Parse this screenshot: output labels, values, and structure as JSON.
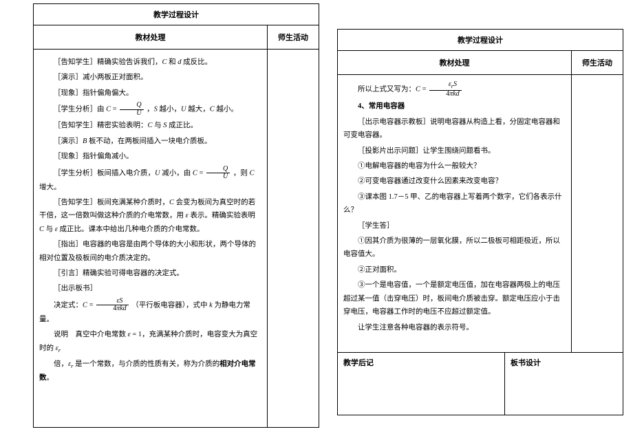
{
  "left": {
    "title": "教学过程设计",
    "col_a": "教材处理",
    "col_b": "师生活动",
    "lines": [
      "［告知学生］精确实验告诉我们，<span class='it'>C</span> 和 <span class='it'>d</span> 成反比。",
      "［演示］减小两板正对面积。",
      "［现象］指针偏角偏大。",
      "［学生分析］由 <span class='it'>C</span> = <span class='frac'><span class='num'><span class=\"it\">Q</span></span><span class='den'><span class=\"it\">U</span></span></span> ，<span class='it'>S</span> 越小，<span class='it'>U</span> 越大，<span class='it'>C</span> 越小。",
      "［告知学生］精密实验表明：<span class='it'>C</span> 与 <span class='it'>S</span> 成正比。",
      "［演示］<span class='it'>B</span> 板不动，在两板间插入一块电介质板。",
      "［现象］指针偏角减小。",
      "［学生分析］板间插入电介质，<span class='it'>U</span> 减小，由 <span class='it'>C</span> = <span class='frac'><span class='num'><span class=\"it\">Q</span></span><span class='den'><span class=\"it\">U</span></span></span> ，则 <span class='it'>C</span> 增大。",
      "［告知学生］板间充满某种介质时，<span class='it'>C</span> 会变为板间为真空时的若干倍，这一倍数叫做这种介质的介电常数，用 <span class='it'>ε</span> 表示。精确实验表明 <span class='it'>C</span> 与 <span class='it'>ε</span> 成正比。课本中给出几种电介质的介电常数。",
      "［指出］电容器的电容是由两个导体的大小和形状，两个导体的相对位置及极板间的电介质决定的。",
      "［引言］精确实验可得电容器的决定式。",
      "［出示板书］",
      "决定式：<span class='it'>C</span> = <span class='frac'><span class='num'><span class=\"it\">εS</span></span><span class='den'>4<span class=\"it\">πkd</span></span></span> （平行板电容器），式中 <span class='it'>k</span> 为静电力常量。",
      "说明　真空中介电常数 <span class='it'>ε</span> = 1，充满某种介质时，电容变大为真空时的 <span class='it'>ε<sub>r</sub></span>",
      "倍，<span class='it'>ε<sub>r</sub></span> 是一个常数，与介质的性质有关，称为介质的<span class='bold'>相对介电常数</span>。"
    ]
  },
  "right": {
    "title": "教学过程设计",
    "col_a": "教材处理",
    "col_b": "师生活动",
    "lines_top": [
      "所以上式又写为：<span class='it'>C</span> = <span class='frac'><span class='num'><span class=\"it\">ε<sub>r</sub>S</span></span><span class='den'>4<span class=\"it\">πkd</span></span></span>",
      "<span class='bold'>4、常用电容器</span>",
      "［出示电容器示教板］说明电容器从构造上看，分固定电容器和可变电容器。",
      "［投影片出示问题］让学生围绕问题看书。",
      "①电解电容器的电容为什么一般较大？",
      "②可变电容器通过改变什么因素来改变电容？",
      "③课本图 1.7－5 甲、乙的电容器上写着两个数字，它们各表示什么？",
      "［学生答］",
      "①因其介质为很薄的一层氧化膜，所以二极板可相距极近，所以电容值大。",
      "②正对面积。",
      "③一个是电容值，一个是额定电压值，加在电容器两极上的电压超过某一值（击穿电压）时，板间电介质被击穿。额定电压应小于击穿电压，电容器工作时的电压不应超过额定值。",
      "让学生注意各种电容器的表示符号。"
    ],
    "bottom_l": "教学后记",
    "bottom_r": "板书设计"
  }
}
